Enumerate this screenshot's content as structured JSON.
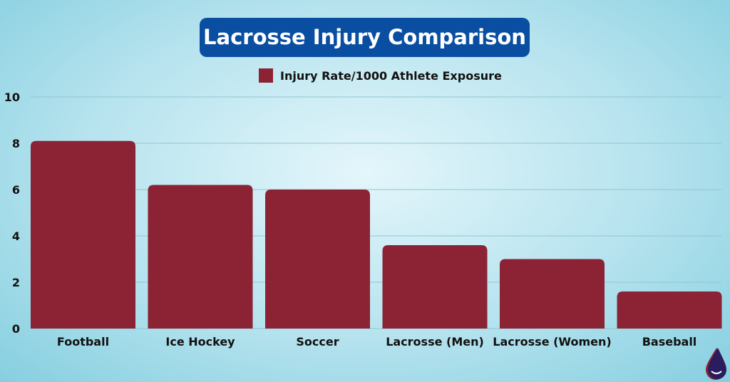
{
  "chart_data": {
    "type": "bar",
    "title": "Lacrosse Injury Comparison",
    "categories": [
      "Football",
      "Ice Hockey",
      "Soccer",
      "Lacrosse (Men)",
      "Lacrosse (Women)",
      "Baseball"
    ],
    "series": [
      {
        "name": "Injury Rate/1000 Athlete Exposure",
        "values": [
          8.1,
          6.2,
          6.0,
          3.6,
          3.0,
          1.6
        ]
      }
    ],
    "xlabel": "",
    "ylabel": "",
    "ylim": [
      0,
      10
    ],
    "yticks": [
      0,
      2,
      4,
      6,
      8,
      10
    ],
    "grid": true,
    "legend": "top-center",
    "colors": {
      "bar": "#8b2335",
      "title_bg": "#0a4ea2"
    }
  },
  "logo": {
    "icon": "drop-logo-icon"
  }
}
